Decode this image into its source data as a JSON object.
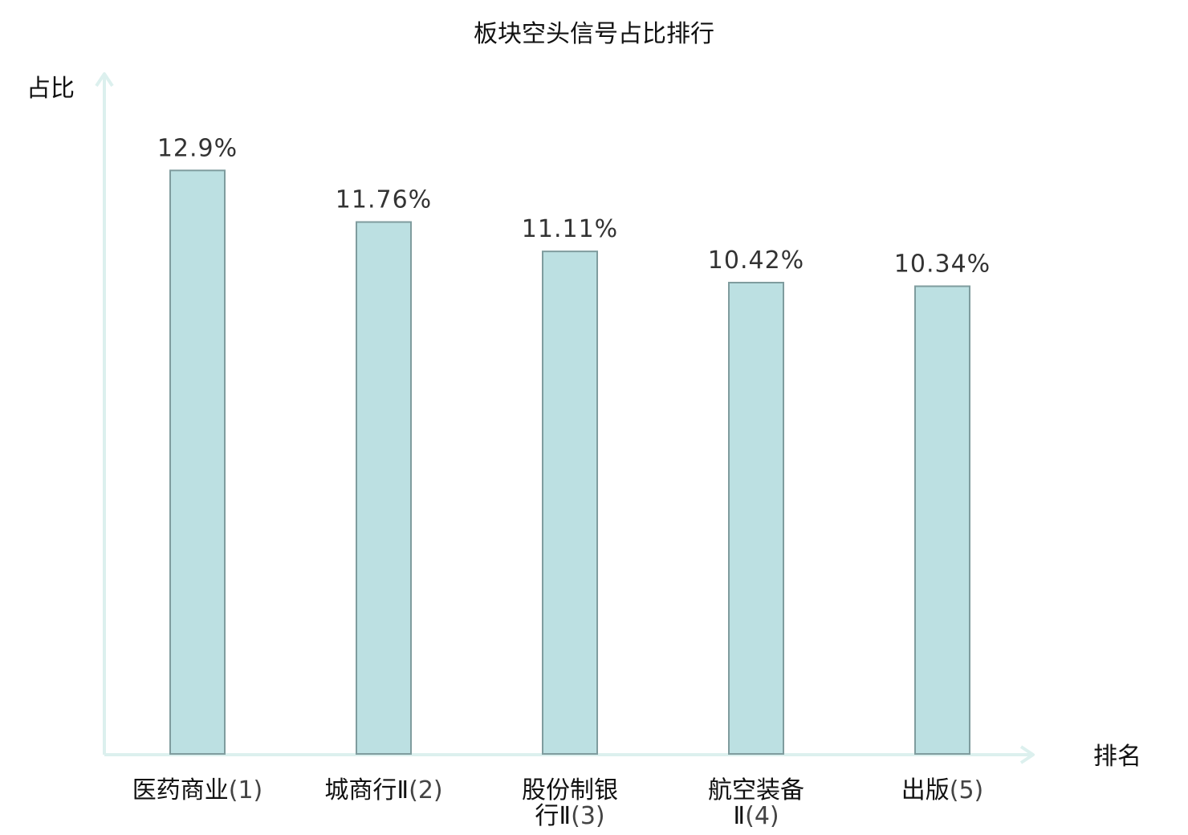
{
  "chart_data": {
    "type": "bar",
    "title": "板块空头信号占比排行",
    "ylabel": "占比",
    "xlabel": "排名",
    "categories": [
      {
        "lines": [
          "医药商业"
        ],
        "rank": "(1)",
        "highlight": false
      },
      {
        "lines": [
          "城商行Ⅱ"
        ],
        "rank": "(2)",
        "highlight": false
      },
      {
        "lines": [
          "股份制银",
          "行Ⅱ"
        ],
        "rank": "(3)",
        "highlight": false
      },
      {
        "lines": [
          "航空装备",
          "Ⅱ"
        ],
        "rank": "(4)",
        "highlight": false
      },
      {
        "lines": [
          "出版"
        ],
        "rank": "(5)",
        "highlight": true
      }
    ],
    "values": [
      12.9,
      11.76,
      11.11,
      10.42,
      10.34
    ],
    "value_labels": [
      "12.9%",
      "11.76%",
      "11.11%",
      "10.42%",
      "10.34%"
    ],
    "ylim": [
      0,
      15
    ],
    "grid": false,
    "colors": {
      "bar_fill": "#bce0e2",
      "bar_stroke": "#7f9c9e",
      "axis": "#dcf0ee",
      "highlight_label": "#d0141b"
    }
  }
}
